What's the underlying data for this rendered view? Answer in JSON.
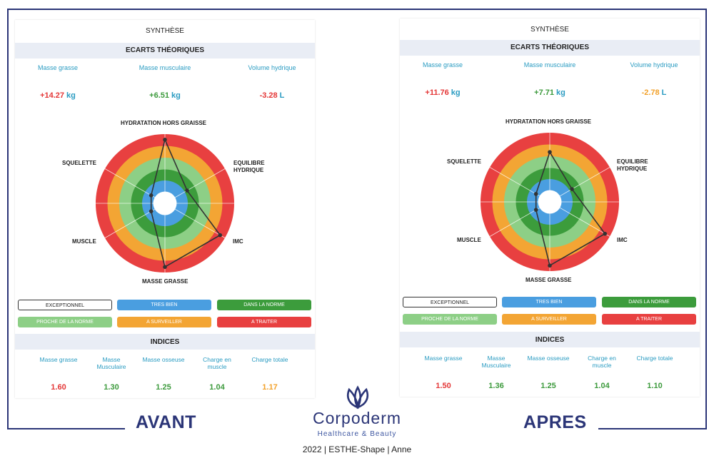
{
  "panels": [
    {
      "synthese": "SYNTHÈSE",
      "ecarts_title": "ECARTS THÉORIQUES",
      "ecarts": [
        {
          "label": "Masse grasse",
          "value": "+14.27",
          "unit": "kg",
          "color": "#e43737"
        },
        {
          "label": "Masse musculaire",
          "value": "+6.51",
          "unit": "kg",
          "color": "#3c9a3c"
        },
        {
          "label": "Volume hydrique",
          "value": "-3.28",
          "unit": "L",
          "color": "#e43737"
        }
      ],
      "axes": {
        "hydratation": "HYDRATATION HORS GRAISSE",
        "equilibre_1": "EQUILIBRE",
        "equilibre_2": "HYDRIQUE",
        "imc": "IMC",
        "masse_grasse": "MASSE GRASSE",
        "muscle": "MUSCLE",
        "squelette": "SQUELETTE"
      },
      "radar_levels": [
        0.92,
        0.37,
        0.92,
        0.92,
        0.23,
        0.23
      ],
      "legend": {
        "exceptionnel": "EXCEPTIONNEL",
        "tres_bien": "TRES BIEN",
        "dans_la_norme": "DANS LA NORME",
        "proche_norme": "PROCHE DE LA NORME",
        "a_surveiller": "A SURVEILLER",
        "a_traiter": "A TRAITER"
      },
      "indices_title": "INDICES",
      "indices": [
        {
          "label1": "Masse grasse",
          "label2": "",
          "value": "1.60",
          "color": "#e43737"
        },
        {
          "label1": "Masse",
          "label2": "Musculaire",
          "value": "1.30",
          "color": "#3c9a3c"
        },
        {
          "label1": "Masse osseuse",
          "label2": "",
          "value": "1.25",
          "color": "#3c9a3c"
        },
        {
          "label1": "Charge en",
          "label2": "muscle",
          "value": "1.04",
          "color": "#3c9a3c"
        },
        {
          "label1": "Charge totale",
          "label2": "",
          "value": "1.17",
          "color": "#f2a12a"
        }
      ]
    },
    {
      "synthese": "SYNTHÈSE",
      "ecarts_title": "ECARTS THÉORIQUES",
      "ecarts": [
        {
          "label": "Masse grasse",
          "value": "+11.76",
          "unit": "kg",
          "color": "#e43737"
        },
        {
          "label": "Masse musculaire",
          "value": "+7.71",
          "unit": "kg",
          "color": "#3c9a3c"
        },
        {
          "label": "Volume hydrique",
          "value": "-2.78",
          "unit": "L",
          "color": "#f2a12a"
        }
      ],
      "axes": {
        "hydratation": "HYDRATATION HORS GRAISSE",
        "equilibre_1": "EQUILIBRE",
        "equilibre_2": "HYDRIQUE",
        "imc": "IMC",
        "masse_grasse": "MASSE GRASSE",
        "muscle": "MUSCLE",
        "squelette": "SQUELETTE"
      },
      "radar_levels": [
        0.72,
        0.37,
        0.92,
        0.92,
        0.23,
        0.23
      ],
      "legend": {
        "exceptionnel": "EXCEPTIONNEL",
        "tres_bien": "TRES BIEN",
        "dans_la_norme": "DANS LA NORME",
        "proche_norme": "PROCHE DE LA NORME",
        "a_surveiller": "A SURVEILLER",
        "a_traiter": "A TRAITER"
      },
      "indices_title": "INDICES",
      "indices": [
        {
          "label1": "Masse grasse",
          "label2": "",
          "value": "1.50",
          "color": "#e43737"
        },
        {
          "label1": "Masse",
          "label2": "Musculaire",
          "value": "1.36",
          "color": "#3c9a3c"
        },
        {
          "label1": "Masse osseuse",
          "label2": "",
          "value": "1.25",
          "color": "#3c9a3c"
        },
        {
          "label1": "Charge en",
          "label2": "muscle",
          "value": "1.04",
          "color": "#3c9a3c"
        },
        {
          "label1": "Charge totale",
          "label2": "",
          "value": "1.10",
          "color": "#3c9a3c"
        }
      ]
    }
  ],
  "labels": {
    "avant": "AVANT",
    "apres": "APRES"
  },
  "brand": {
    "name": "Corpoderm",
    "subtitle": "Healthcare & Beauty",
    "logo_icon": "lotus-icon",
    "color": "#2b3577"
  },
  "caption": "2022 | ESTHE-Shape | Anne"
}
